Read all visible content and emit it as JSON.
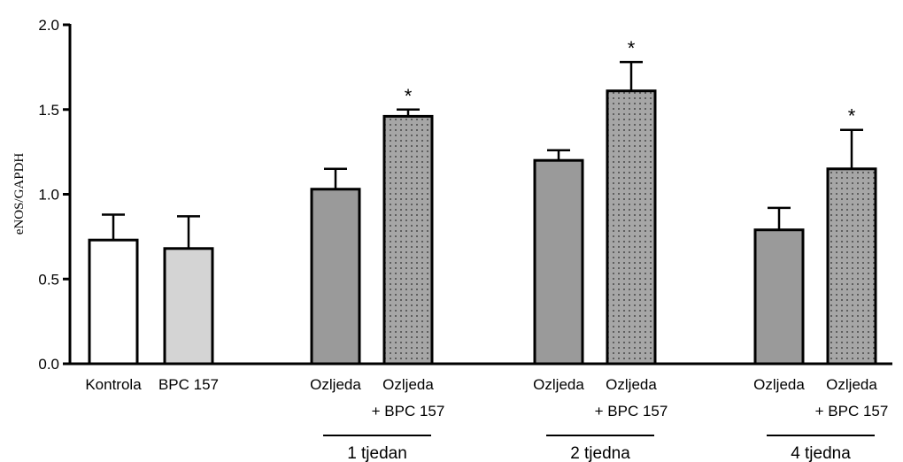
{
  "chart_data": {
    "type": "bar",
    "ylabel": "eNOS/GAPDH",
    "ylim": [
      0,
      2.0
    ],
    "yticks": [
      "0.0",
      "0.5",
      "1.0",
      "1.5",
      "2.0"
    ],
    "grid": false,
    "legend": "none",
    "bars": [
      {
        "label1": "Kontrola",
        "label2": "",
        "value": 0.73,
        "error": 0.15,
        "fill": "white",
        "sig": ""
      },
      {
        "label1": "BPC 157",
        "label2": "",
        "value": 0.68,
        "error": 0.19,
        "fill": "light",
        "sig": ""
      },
      {
        "label1": "Ozljeda",
        "label2": "",
        "value": 1.03,
        "error": 0.12,
        "fill": "gray",
        "sig": ""
      },
      {
        "label1": "Ozljeda",
        "label2": "+ BPC 157",
        "value": 1.46,
        "error": 0.04,
        "fill": "dotted",
        "sig": "*"
      },
      {
        "label1": "Ozljeda",
        "label2": "",
        "value": 1.2,
        "error": 0.06,
        "fill": "gray",
        "sig": ""
      },
      {
        "label1": "Ozljeda",
        "label2": "+ BPC 157",
        "value": 1.61,
        "error": 0.17,
        "fill": "dotted",
        "sig": "*"
      },
      {
        "label1": "Ozljeda",
        "label2": "",
        "value": 0.79,
        "error": 0.13,
        "fill": "gray",
        "sig": ""
      },
      {
        "label1": "Ozljeda",
        "label2": "+ BPC 157",
        "value": 1.15,
        "error": 0.23,
        "fill": "dotted",
        "sig": "*"
      }
    ],
    "groups": [
      {
        "label": "1 tjedan",
        "bars": [
          2,
          3
        ]
      },
      {
        "label": "2 tjedna",
        "bars": [
          4,
          5
        ]
      },
      {
        "label": "4 tjedna",
        "bars": [
          6,
          7
        ]
      }
    ]
  },
  "colors": {
    "white": "#ffffff",
    "light": "#d4d4d4",
    "gray": "#9a9a9a",
    "dotted_base": "#a6a6a6",
    "dots": "#2b2b2b",
    "stroke": "#000000"
  }
}
